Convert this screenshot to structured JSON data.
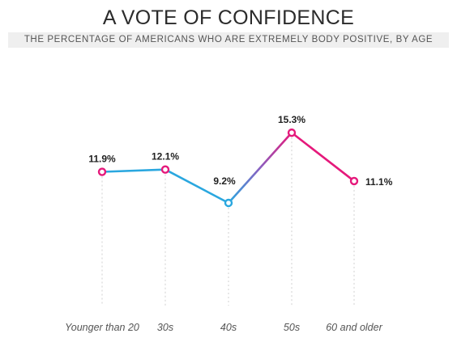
{
  "header": {
    "title": "A VOTE OF CONFIDENCE",
    "subtitle": "THE PERCENTAGE OF AMERICANS WHO ARE EXTREMELY BODY POSITIVE, BY AGE"
  },
  "colors": {
    "blue": "#2aa7df",
    "pink": "#e5197b",
    "purple": "#8a5fc0",
    "guide": "#d0d0d0"
  },
  "chart_data": {
    "type": "line",
    "title": "A VOTE OF CONFIDENCE",
    "subtitle": "THE PERCENTAGE OF AMERICANS WHO ARE EXTREMELY BODY POSITIVE, BY AGE",
    "categories": [
      "Younger than 20",
      "30s",
      "40s",
      "50s",
      "60 and older"
    ],
    "values": [
      11.9,
      12.1,
      9.2,
      15.3,
      11.1
    ],
    "data_labels": [
      "11.9%",
      "12.1%",
      "9.2%",
      "15.3%",
      "11.1%"
    ],
    "ylim": [
      0,
      17
    ],
    "grid": false,
    "legend": "none"
  }
}
